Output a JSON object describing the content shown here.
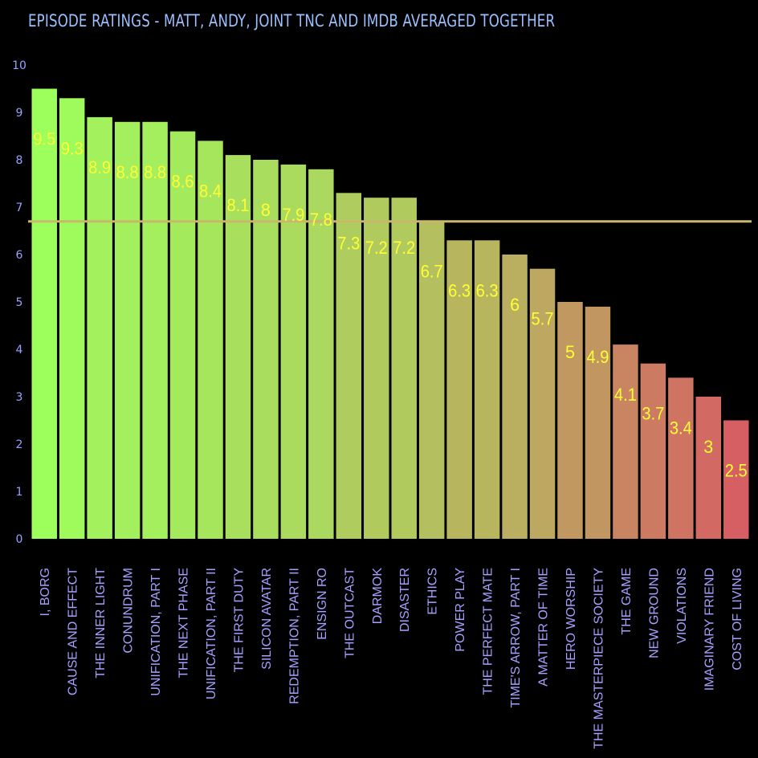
{
  "title": "EPISODE RATINGS - MATT, ANDY, JOINT TNC AND IMDB AVERAGED TOGETHER",
  "chart_data": {
    "type": "bar",
    "title": "EPISODE RATINGS - MATT, ANDY, JOINT TNC AND IMDB AVERAGED TOGETHER",
    "xlabel": "",
    "ylabel": "",
    "ylim": [
      0,
      10
    ],
    "yticks": [
      "0",
      "1",
      "2",
      "3",
      "4",
      "5",
      "6",
      "7",
      "8",
      "9",
      "10"
    ],
    "grid": false,
    "legend": "none",
    "reference_line": 6.7,
    "reference_line_color": "#c8b86c",
    "color_high": "#9dff5c",
    "color_low": "#d65f63",
    "categories": [
      "I, BORG",
      "CAUSE AND EFFECT",
      "THE INNER LIGHT",
      "CONUNDRUM",
      "UNIFICATION, PART I",
      "THE NEXT PHASE",
      "UNIFICATION, PART II",
      "THE FIRST DUTY",
      "SILICON AVATAR",
      "REDEMPTION, PART II",
      "ENSIGN RO",
      "THE OUTCAST",
      "DARMOK",
      "DISASTER",
      "ETHICS",
      "POWER PLAY",
      "THE PERFECT MATE",
      "TIME'S ARROW, PART I",
      "A MATTER OF TIME",
      "HERO WORSHIP",
      "THE MASTERPIECE SOCIETY",
      "THE GAME",
      "NEW GROUND",
      "VIOLATIONS",
      "IMAGINARY FRIEND",
      "COST OF LIVING"
    ],
    "values": [
      9.5,
      9.3,
      8.9,
      8.8,
      8.8,
      8.6,
      8.4,
      8.1,
      8,
      7.9,
      7.8,
      7.3,
      7.2,
      7.2,
      6.7,
      6.3,
      6.3,
      6,
      5.7,
      5,
      4.9,
      4.1,
      3.7,
      3.4,
      3,
      2.5
    ],
    "value_labels": [
      "9.5",
      "9.3",
      "8.9",
      "8.8",
      "8.8",
      "8.6",
      "8.4",
      "8.1",
      "8",
      "7.9",
      "7.8",
      "7.3",
      "7.2",
      "7.2",
      "6.7",
      "6.3",
      "6.3",
      "6",
      "5.7",
      "5",
      "4.9",
      "4.1",
      "3.7",
      "3.4",
      "3",
      "2.5"
    ]
  }
}
